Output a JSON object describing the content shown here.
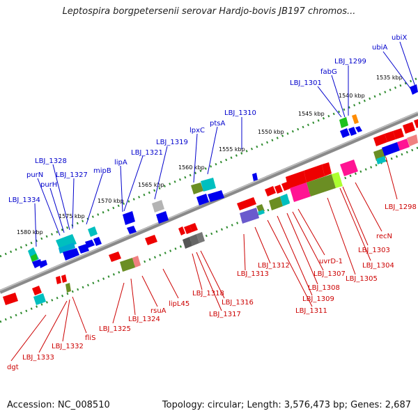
{
  "title": "Leptospira borgpetersenii serovar Hardjo-bovis JB197 chromos...",
  "footer": {
    "accession": "Accession: NC_008510",
    "summary": "Topology: circular; Length: 3,576,473 bp; Genes: 2,687"
  },
  "colors": {
    "backbone": "#8a8a8a",
    "forward_label": "#0000cc",
    "reverse_label": "#cc0000",
    "tick_dots": "#2e8b2e"
  },
  "kbp_ticks": [
    "1535 kbp",
    "1540 kbp",
    "1545 kbp",
    "1550 kbp",
    "1555 kbp",
    "1560 kbp",
    "1565 kbp",
    "1570 kbp",
    "1575 kbp",
    "1580 kbp"
  ],
  "forward_labels": [
    "ubiX",
    "ubiA",
    "LBJ_1299",
    "fabG",
    "LBJ_1301",
    "LBJ_1310",
    "ptsA",
    "lpxC",
    "LBJ_1319",
    "LBJ_1321",
    "lipA",
    "mipB",
    "LBJ_1327",
    "LBJ_1328",
    "purN",
    "purH",
    "LBJ_1334"
  ],
  "reverse_labels": [
    "LBJ_1298",
    "recN",
    "LBJ_1303",
    "LBJ_1304",
    "LBJ_1305",
    "uvrD-1",
    "LBJ_1307",
    "LBJ_1308",
    "LBJ_1309",
    "LBJ_1311",
    "LBJ_1312",
    "LBJ_1313",
    "LBJ_1316",
    "LBJ_1317",
    "LBJ_1318",
    "lipL45",
    "rsuA",
    "LBJ_1324",
    "LBJ_1325",
    "fliS",
    "LBJ_1332",
    "LBJ_1333",
    "dgt"
  ]
}
